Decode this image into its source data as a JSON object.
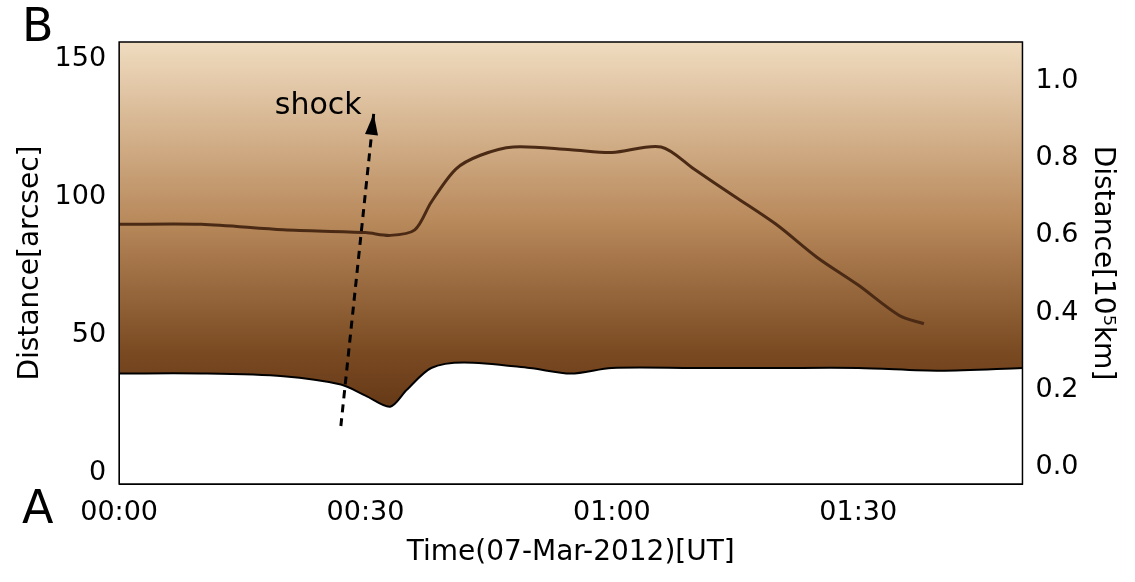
{
  "chart_data": {
    "type": "line",
    "x_label": "Time(07-Mar-2012)[UT]",
    "y_label": "Distance[arcsec]",
    "y2_label": "Distance[10⁵km]",
    "endpoint_labels": {
      "bottom": "A",
      "top": "B"
    },
    "xlim": [
      0,
      110
    ],
    "xticks": [
      {
        "value": 0,
        "label": "00:00"
      },
      {
        "value": 30,
        "label": "00:30"
      },
      {
        "value": 60,
        "label": "01:00"
      },
      {
        "value": 90,
        "label": "01:30"
      }
    ],
    "ylim": [
      -4,
      156
    ],
    "yticks": [
      0,
      50,
      100,
      150
    ],
    "y2lim": [
      -0.043,
      1.1
    ],
    "y2ticks": [
      {
        "value": 0,
        "label": "0.0"
      },
      {
        "value": 0.2,
        "label": "0.2"
      },
      {
        "value": 0.4,
        "label": "0.4"
      },
      {
        "value": 0.6,
        "label": "0.6"
      },
      {
        "value": 0.8,
        "label": "0.8"
      },
      {
        "value": 1,
        "label": "1.0"
      }
    ],
    "grid": false,
    "series": [
      {
        "color": "#000000",
        "line_style": "solid",
        "x": [
          0,
          10,
          20,
          27,
          30,
          33,
          35,
          38,
          42,
          50,
          55,
          60,
          70,
          80,
          90,
          100,
          110
        ],
        "values": [
          36,
          36,
          35,
          32,
          28,
          24,
          30,
          38,
          40,
          38,
          36,
          38,
          38,
          38,
          38,
          37,
          38
        ]
      },
      {
        "color": "#4a2a14",
        "line_style": "solid",
        "x": [
          0,
          10,
          20,
          30,
          33,
          36,
          38,
          41,
          44,
          48,
          55,
          60,
          66,
          70,
          75,
          80,
          85,
          90,
          95,
          98
        ],
        "values": [
          90,
          90,
          88,
          87,
          86,
          88,
          98,
          110,
          115,
          118,
          117,
          116,
          118,
          110,
          100,
          90,
          78,
          68,
          57,
          54
        ]
      },
      {
        "color": "#000000",
        "line_style": "dashed",
        "marker": "arrow",
        "annotation": "shock",
        "x": [
          27,
          31
        ],
        "values": [
          17,
          130
        ]
      }
    ]
  }
}
